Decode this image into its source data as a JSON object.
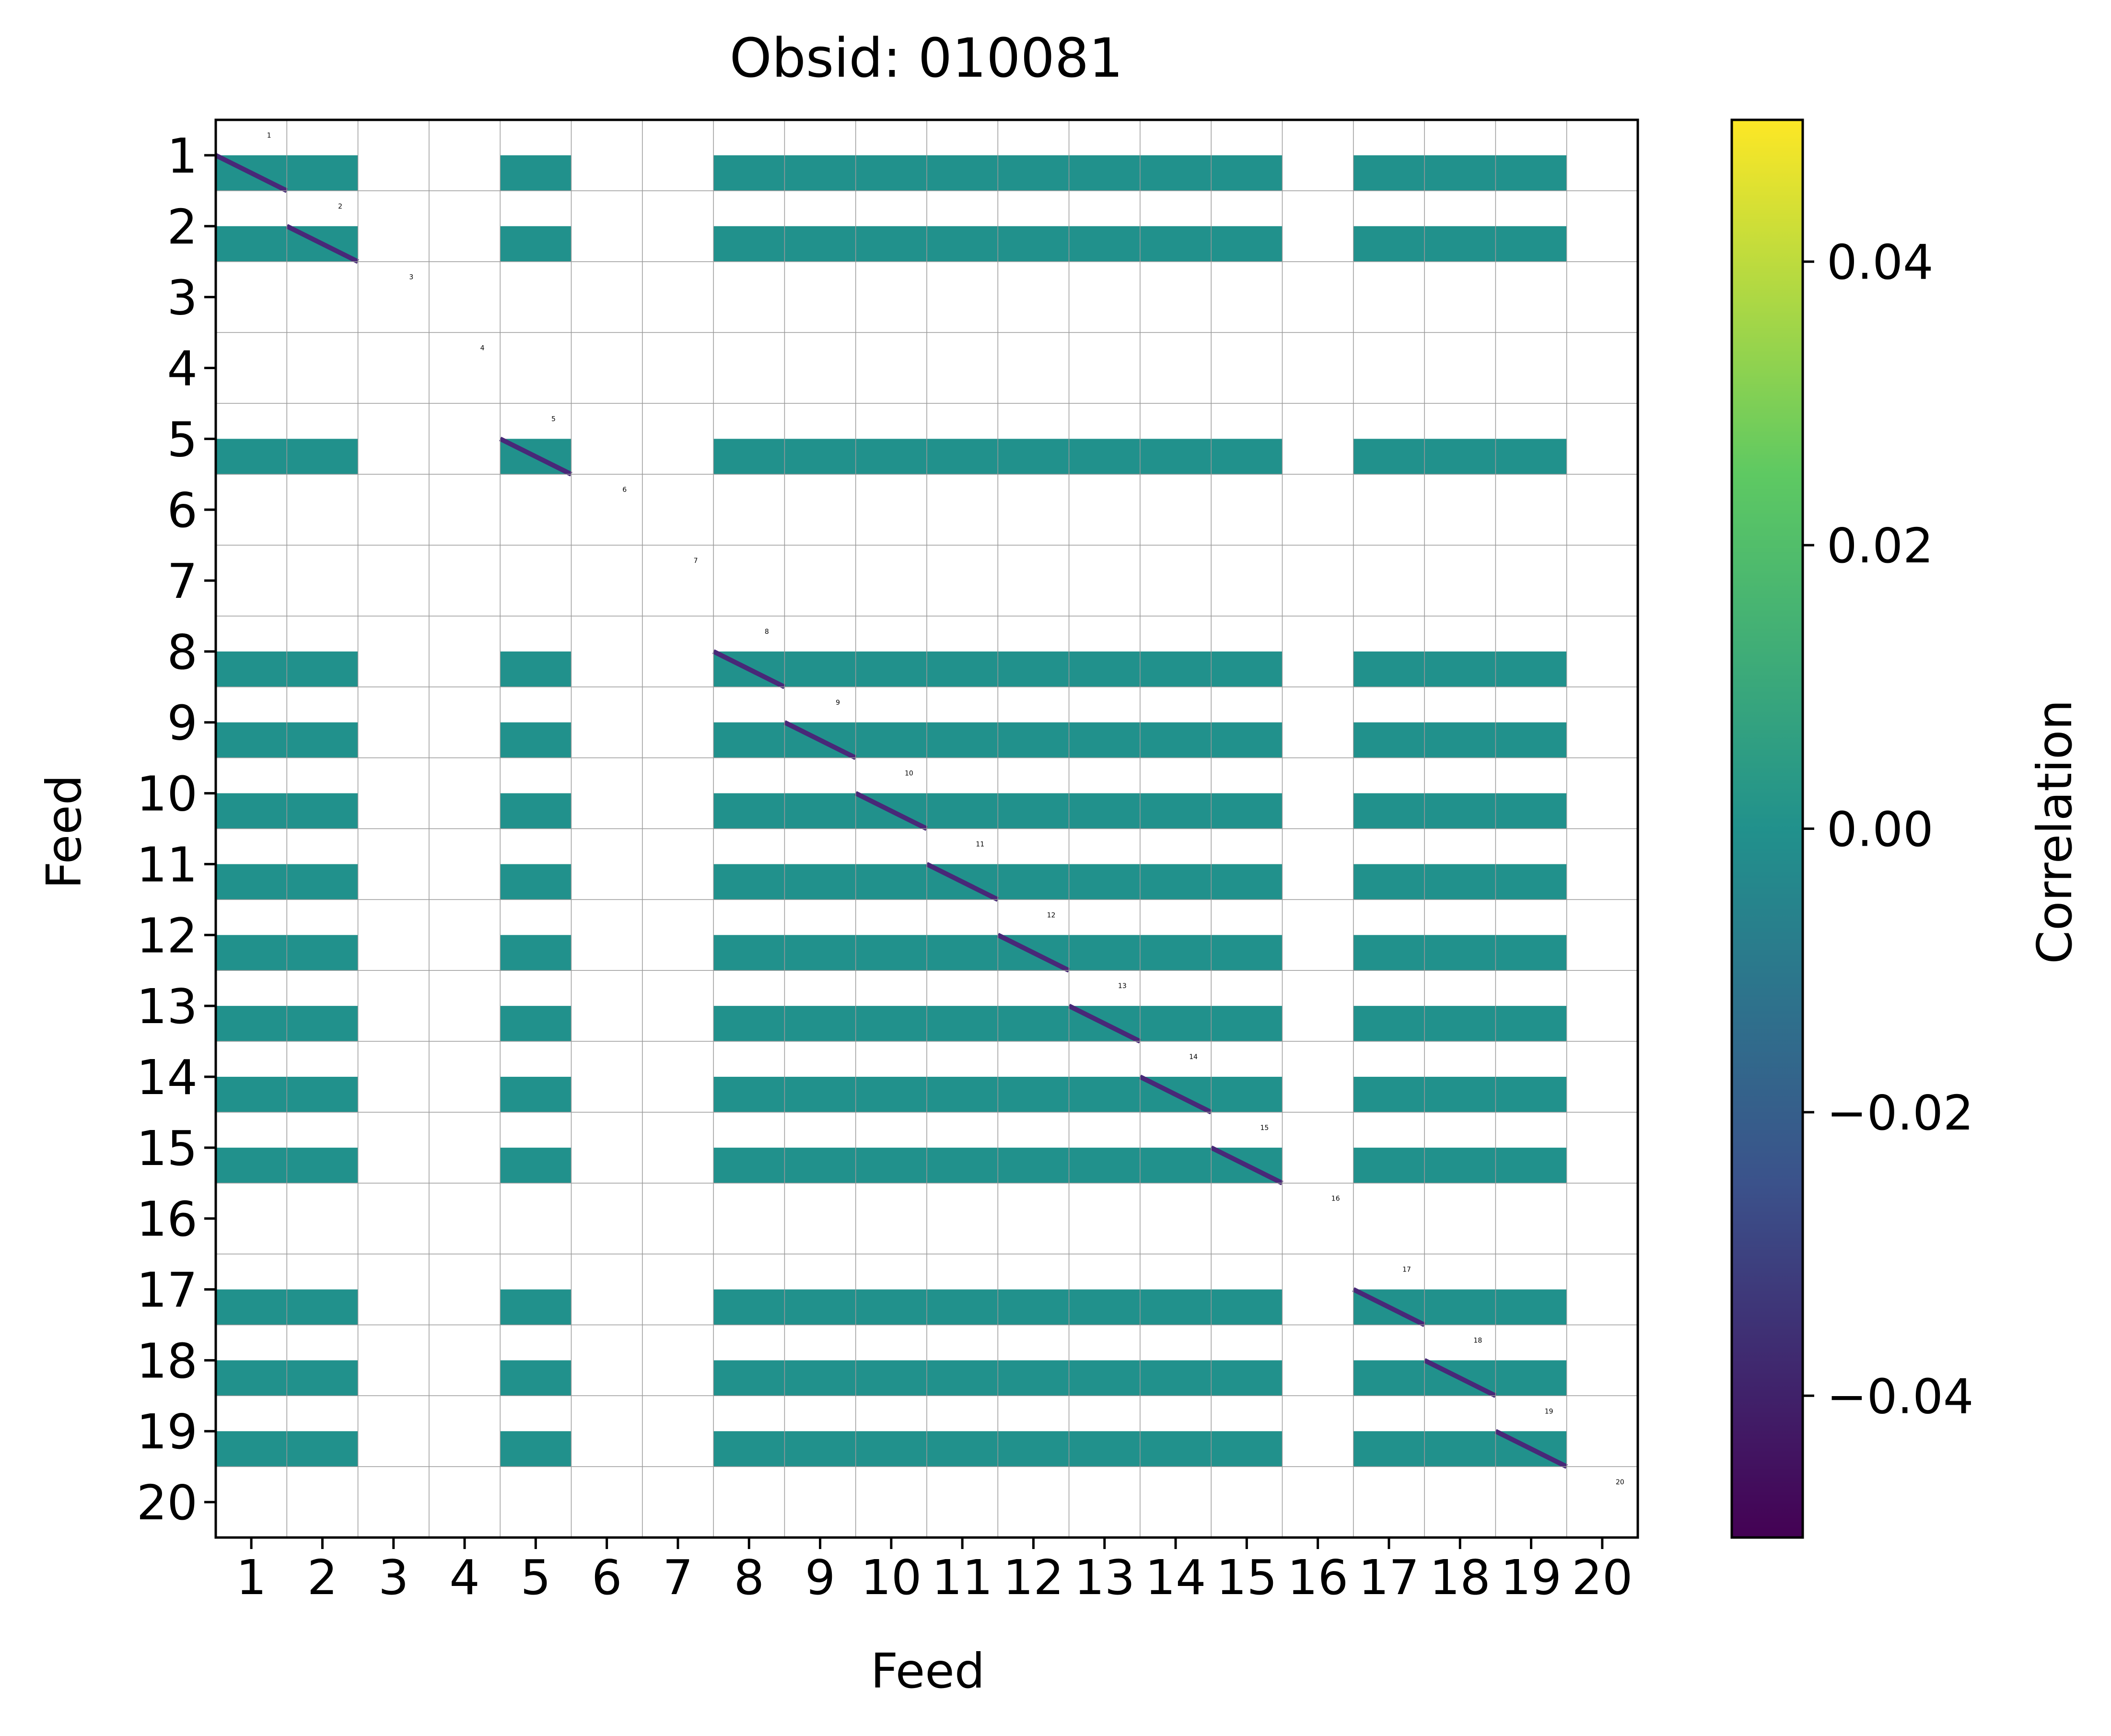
{
  "chart_data": {
    "type": "heatmap",
    "title": "Obsid: 010081",
    "xlabel": "Feed",
    "ylabel": "Feed",
    "x_tick_labels": [
      "1",
      "2",
      "3",
      "4",
      "5",
      "6",
      "7",
      "8",
      "9",
      "10",
      "11",
      "12",
      "13",
      "14",
      "15",
      "16",
      "17",
      "18",
      "19",
      "20"
    ],
    "y_tick_labels": [
      "1",
      "2",
      "3",
      "4",
      "5",
      "6",
      "7",
      "8",
      "9",
      "10",
      "11",
      "12",
      "13",
      "14",
      "15",
      "16",
      "17",
      "18",
      "19",
      "20"
    ],
    "colorbar": {
      "label": "Correlation",
      "range": [
        -0.05,
        0.05
      ],
      "ticks": [
        0.04,
        0.02,
        0.0,
        -0.02,
        -0.04
      ],
      "tick_labels": [
        "0.04",
        "0.02",
        "0.00",
        "−0.02",
        "−0.04"
      ],
      "colormap": "viridis",
      "colormap_stops": [
        "#440154",
        "#3b528b",
        "#21918c",
        "#5ec962",
        "#fde725"
      ]
    },
    "grid": true,
    "masked_color": "#ffffff",
    "fill_value": 0.0,
    "fill_color": "#21918c",
    "diagonal_color": "#482878",
    "active_feeds": [
      1,
      2,
      5,
      8,
      9,
      10,
      11,
      12,
      13,
      14,
      15,
      17,
      18,
      19
    ],
    "inactive_feeds": [
      3,
      4,
      6,
      7,
      16,
      20
    ],
    "cell_labels": [
      "1",
      "2",
      "3",
      "4",
      "5",
      "6",
      "7",
      "8",
      "9",
      "10",
      "11",
      "12",
      "13",
      "14",
      "15",
      "16",
      "17",
      "18",
      "19",
      "20"
    ]
  }
}
